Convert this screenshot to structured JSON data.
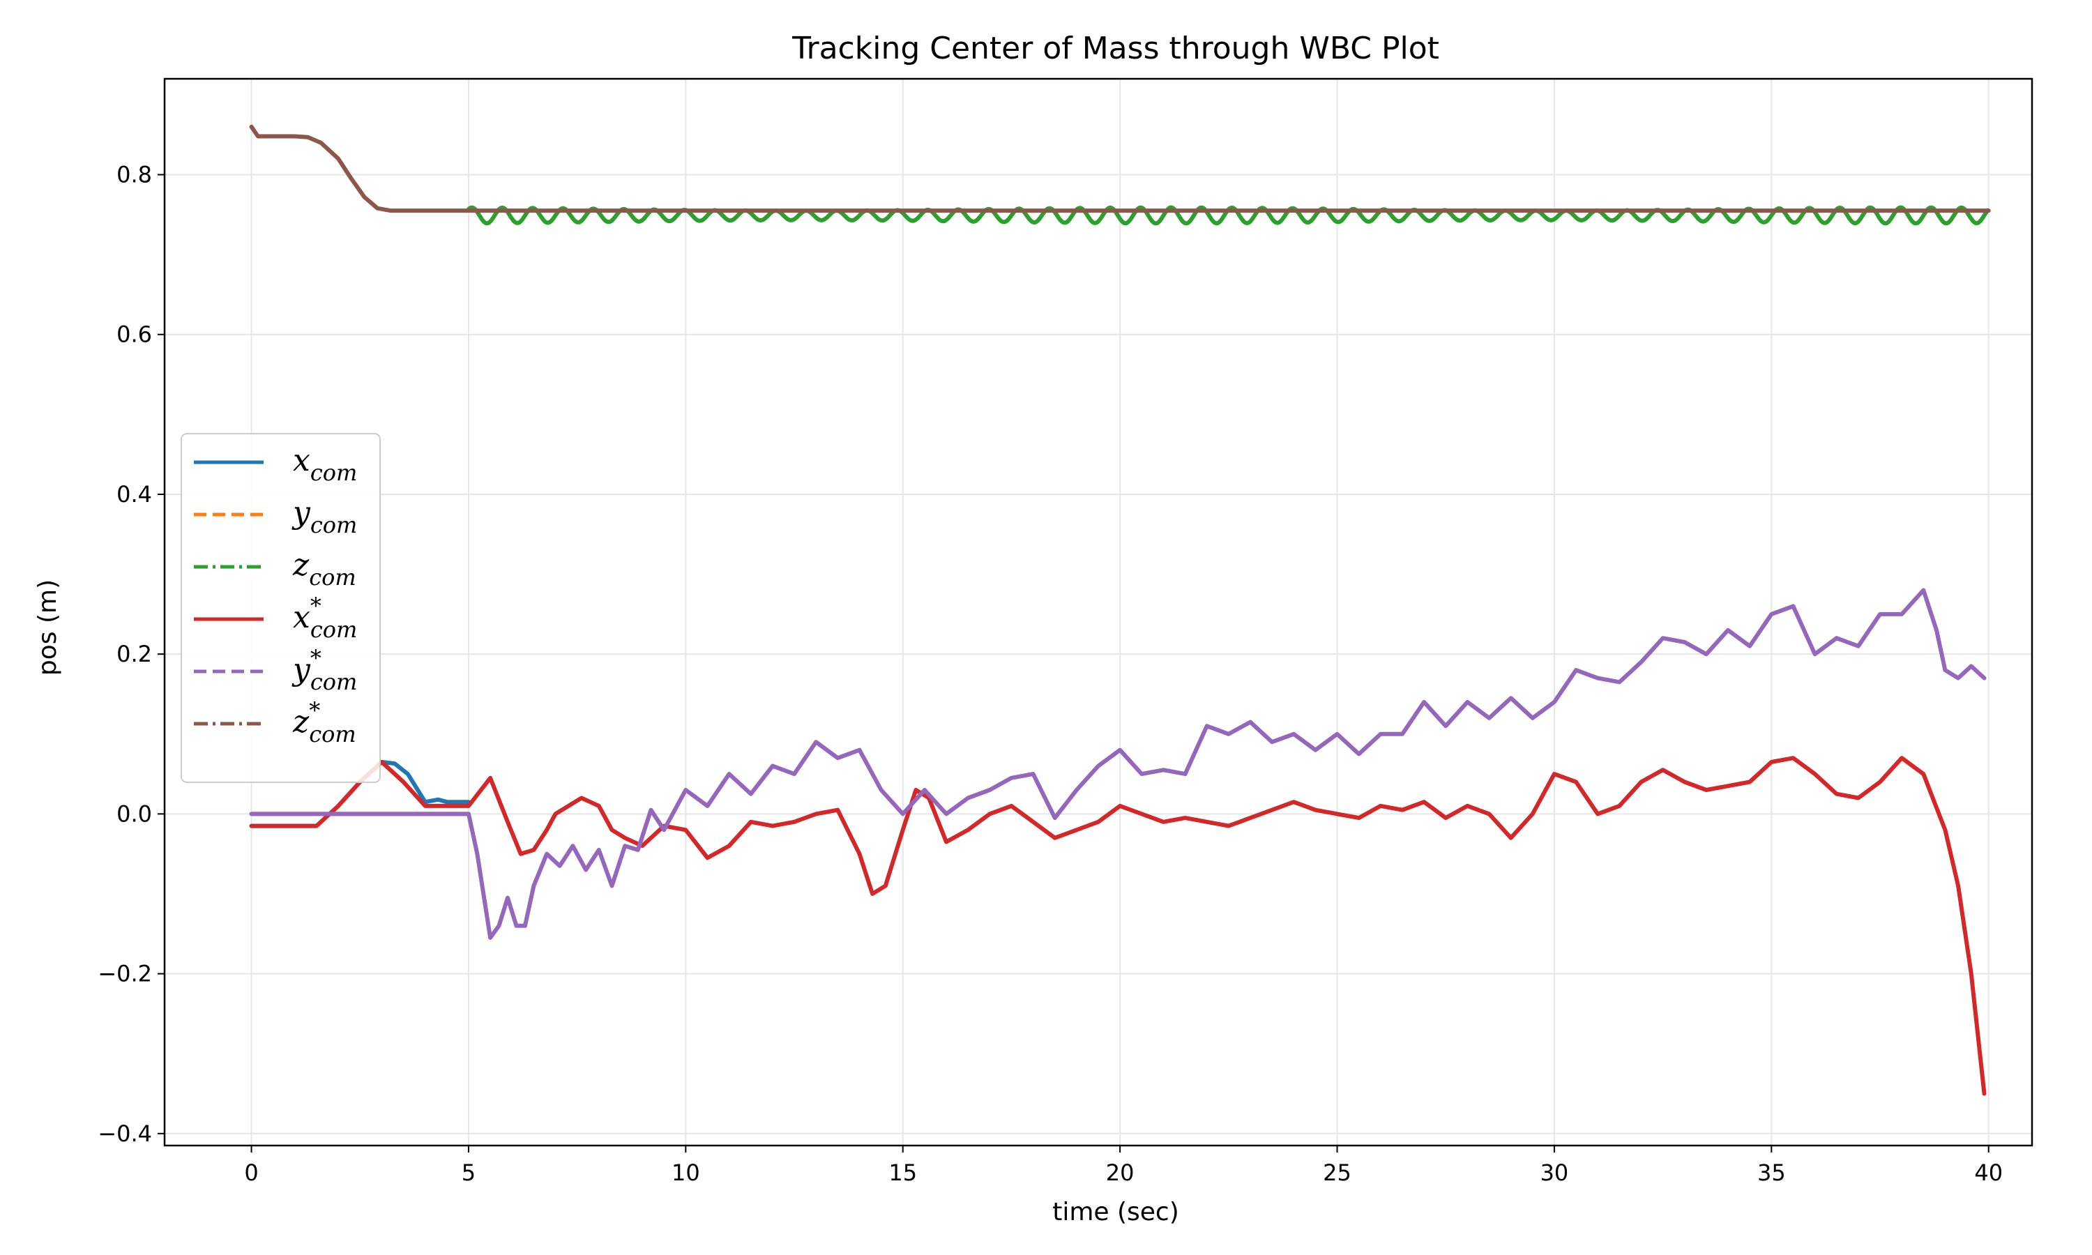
{
  "chart_data": {
    "type": "line",
    "title": "Tracking Center of Mass through WBC Plot",
    "xlabel": "time (sec)",
    "ylabel": "pos (m)",
    "xlim": [
      -2,
      41
    ],
    "ylim": [
      -0.415,
      0.92
    ],
    "xticks": [
      0,
      5,
      10,
      15,
      20,
      25,
      30,
      35,
      40
    ],
    "yticks": [
      -0.4,
      -0.2,
      0.0,
      0.2,
      0.4,
      0.6,
      0.8
    ],
    "xtick_labels": [
      "0",
      "5",
      "10",
      "15",
      "20",
      "25",
      "30",
      "35",
      "40"
    ],
    "ytick_labels": [
      "−0.4",
      "−0.2",
      "0.0",
      "0.2",
      "0.4",
      "0.6",
      "0.8"
    ],
    "grid": true,
    "legend_position": "center-left",
    "series": [
      {
        "name": "x_com",
        "legend_main": "x",
        "legend_sub": "com",
        "legend_sup": "",
        "color": "#1f77b4",
        "dash": "solid",
        "x": [
          0,
          1.5,
          2.0,
          2.5,
          3.0,
          3.3,
          3.6,
          4.0,
          4.3,
          4.5,
          4.8,
          5.0
        ],
        "y": [
          -0.015,
          -0.015,
          0.01,
          0.04,
          0.065,
          0.063,
          0.05,
          0.015,
          0.018,
          0.015,
          0.015,
          0.015
        ]
      },
      {
        "name": "y_com",
        "legend_main": "y",
        "legend_sub": "com",
        "legend_sup": "",
        "color": "#ff7f0e",
        "dash": "dashed",
        "x": [
          0,
          5.0
        ],
        "y": [
          0.0,
          0.0
        ]
      },
      {
        "name": "z_com",
        "legend_main": "z",
        "legend_sub": "com",
        "legend_sup": "",
        "color": "#2ca02c",
        "dash": "dashdot",
        "x": [
          5.0,
          40
        ],
        "y": [
          0.755,
          0.755
        ],
        "oscillation": {
          "amplitude": 0.01,
          "period_sec": 0.7,
          "from": 5.0,
          "to": 40
        }
      },
      {
        "name": "x_com*",
        "legend_main": "x",
        "legend_sub": "com",
        "legend_sup": "*",
        "color": "#d62728",
        "dash": "solid",
        "x": [
          0,
          1.5,
          2.0,
          2.5,
          3.0,
          3.5,
          4.0,
          4.5,
          5.0,
          5.5,
          5.9,
          6.2,
          6.5,
          6.8,
          7.0,
          7.3,
          7.6,
          7.8,
          8.0,
          8.3,
          8.6,
          9.0,
          9.5,
          10.0,
          10.5,
          11.0,
          11.5,
          12.0,
          12.5,
          13.0,
          13.5,
          14.0,
          14.3,
          14.6,
          15.0,
          15.3,
          15.6,
          16.0,
          16.5,
          17.0,
          17.5,
          18.0,
          18.5,
          19.0,
          19.5,
          20.0,
          20.5,
          21.0,
          21.5,
          22.0,
          22.5,
          23.0,
          23.5,
          24.0,
          24.5,
          25.0,
          25.5,
          26.0,
          26.5,
          27.0,
          27.5,
          28.0,
          28.5,
          29.0,
          29.5,
          30.0,
          30.5,
          31.0,
          31.5,
          32.0,
          32.5,
          33.0,
          33.5,
          34.0,
          34.5,
          35.0,
          35.5,
          36.0,
          36.5,
          37.0,
          37.5,
          38.0,
          38.5,
          39.0,
          39.3,
          39.6,
          39.9
        ],
        "y": [
          -0.015,
          -0.015,
          0.01,
          0.04,
          0.065,
          0.04,
          0.01,
          0.01,
          0.01,
          0.045,
          -0.01,
          -0.05,
          -0.045,
          -0.02,
          0.0,
          0.01,
          0.02,
          0.015,
          0.01,
          -0.02,
          -0.03,
          -0.04,
          -0.015,
          -0.02,
          -0.055,
          -0.04,
          -0.01,
          -0.015,
          -0.01,
          0.0,
          0.005,
          -0.05,
          -0.1,
          -0.09,
          -0.02,
          0.03,
          0.02,
          -0.035,
          -0.02,
          0.0,
          0.01,
          -0.01,
          -0.03,
          -0.02,
          -0.01,
          0.01,
          0.0,
          -0.01,
          -0.005,
          -0.01,
          -0.015,
          -0.005,
          0.005,
          0.015,
          0.005,
          0.0,
          -0.005,
          0.01,
          0.005,
          0.015,
          -0.005,
          0.01,
          0.0,
          -0.03,
          0.0,
          0.05,
          0.04,
          0.0,
          0.01,
          0.04,
          0.055,
          0.04,
          0.03,
          0.035,
          0.04,
          0.065,
          0.07,
          0.05,
          0.025,
          0.02,
          0.04,
          0.07,
          0.05,
          -0.02,
          -0.09,
          -0.2,
          -0.35
        ]
      },
      {
        "name": "y_com*",
        "legend_main": "y",
        "legend_sub": "com",
        "legend_sup": "*",
        "color": "#9467bd",
        "dash": "dashed",
        "x": [
          0,
          5.0,
          5.2,
          5.5,
          5.7,
          5.9,
          6.1,
          6.3,
          6.5,
          6.8,
          7.1,
          7.4,
          7.7,
          8.0,
          8.3,
          8.6,
          8.9,
          9.2,
          9.5,
          10.0,
          10.5,
          11.0,
          11.5,
          12.0,
          12.5,
          13.0,
          13.5,
          14.0,
          14.5,
          15.0,
          15.5,
          16.0,
          16.5,
          17.0,
          17.5,
          18.0,
          18.5,
          19.0,
          19.5,
          20.0,
          20.5,
          21.0,
          21.5,
          22.0,
          22.5,
          23.0,
          23.5,
          24.0,
          24.5,
          25.0,
          25.5,
          26.0,
          26.5,
          27.0,
          27.5,
          28.0,
          28.5,
          29.0,
          29.5,
          30.0,
          30.5,
          31.0,
          31.5,
          32.0,
          32.5,
          33.0,
          33.5,
          34.0,
          34.5,
          35.0,
          35.5,
          36.0,
          36.5,
          37.0,
          37.5,
          38.0,
          38.5,
          38.8,
          39.0,
          39.3,
          39.6,
          39.9
        ],
        "y": [
          0.0,
          0.0,
          -0.05,
          -0.155,
          -0.14,
          -0.105,
          -0.14,
          -0.14,
          -0.09,
          -0.05,
          -0.065,
          -0.04,
          -0.07,
          -0.045,
          -0.09,
          -0.04,
          -0.045,
          0.005,
          -0.02,
          0.03,
          0.01,
          0.05,
          0.025,
          0.06,
          0.05,
          0.09,
          0.07,
          0.08,
          0.03,
          0.0,
          0.03,
          0.0,
          0.02,
          0.03,
          0.045,
          0.05,
          -0.005,
          0.03,
          0.06,
          0.08,
          0.05,
          0.055,
          0.05,
          0.11,
          0.1,
          0.115,
          0.09,
          0.1,
          0.08,
          0.1,
          0.075,
          0.1,
          0.1,
          0.14,
          0.11,
          0.14,
          0.12,
          0.145,
          0.12,
          0.14,
          0.18,
          0.17,
          0.165,
          0.19,
          0.22,
          0.215,
          0.2,
          0.23,
          0.21,
          0.25,
          0.26,
          0.2,
          0.22,
          0.21,
          0.25,
          0.25,
          0.28,
          0.23,
          0.18,
          0.17,
          0.185,
          0.17
        ]
      },
      {
        "name": "z_com*",
        "legend_main": "z",
        "legend_sub": "com",
        "legend_sup": "*",
        "color": "#8c564b",
        "dash": "dashdot",
        "x": [
          0,
          0.15,
          0.3,
          1.0,
          1.3,
          1.6,
          2.0,
          2.3,
          2.6,
          2.9,
          3.2,
          40
        ],
        "y": [
          0.86,
          0.848,
          0.848,
          0.848,
          0.847,
          0.84,
          0.82,
          0.795,
          0.772,
          0.758,
          0.755,
          0.755
        ]
      }
    ]
  }
}
